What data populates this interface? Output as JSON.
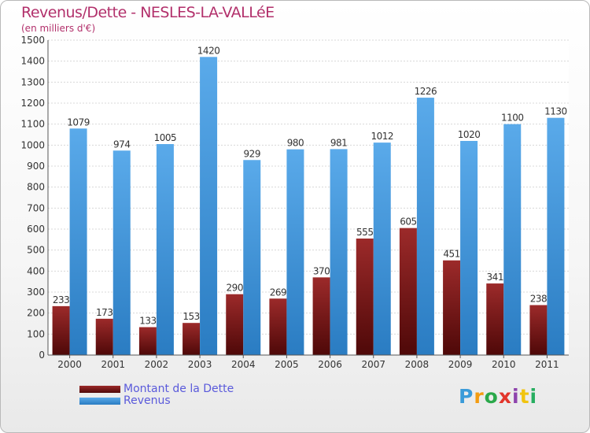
{
  "header": {
    "title": "Revenus/Dette - NESLES-LA-VALLéE",
    "subtitle": "(en milliers d'€)"
  },
  "colors": {
    "dette": "#7a1a1a",
    "revenus": "#3f97dc",
    "title": "#b2306b",
    "legend_text": "#5a5adb"
  },
  "chart_data": {
    "type": "bar",
    "categories": [
      "2000",
      "2001",
      "2002",
      "2003",
      "2004",
      "2005",
      "2006",
      "2007",
      "2008",
      "2009",
      "2010",
      "2011"
    ],
    "series": [
      {
        "name": "Montant de la Dette",
        "values": [
          233,
          173,
          133,
          153,
          290,
          269,
          370,
          555,
          605,
          451,
          341,
          238
        ]
      },
      {
        "name": "Revenus",
        "values": [
          1079,
          974,
          1005,
          1420,
          929,
          980,
          981,
          1012,
          1226,
          1020,
          1100,
          1130
        ]
      }
    ],
    "ylim": [
      0,
      1500
    ],
    "yticks": [
      0,
      100,
      200,
      300,
      400,
      500,
      600,
      700,
      800,
      900,
      1000,
      1100,
      1200,
      1300,
      1400,
      1500
    ],
    "grid": true,
    "legend": "bottom-left"
  },
  "legend": {
    "items": [
      {
        "label": "Montant de la Dette"
      },
      {
        "label": "Revenus"
      }
    ]
  },
  "logo": {
    "letters": [
      "P",
      "r",
      "o",
      "x",
      "i",
      "t",
      "i"
    ],
    "colors": [
      "#3a9bd9",
      "#f39c12",
      "#2aa84a",
      "#e2352b",
      "#8e44ad",
      "#f1c40f",
      "#27ae60"
    ]
  }
}
